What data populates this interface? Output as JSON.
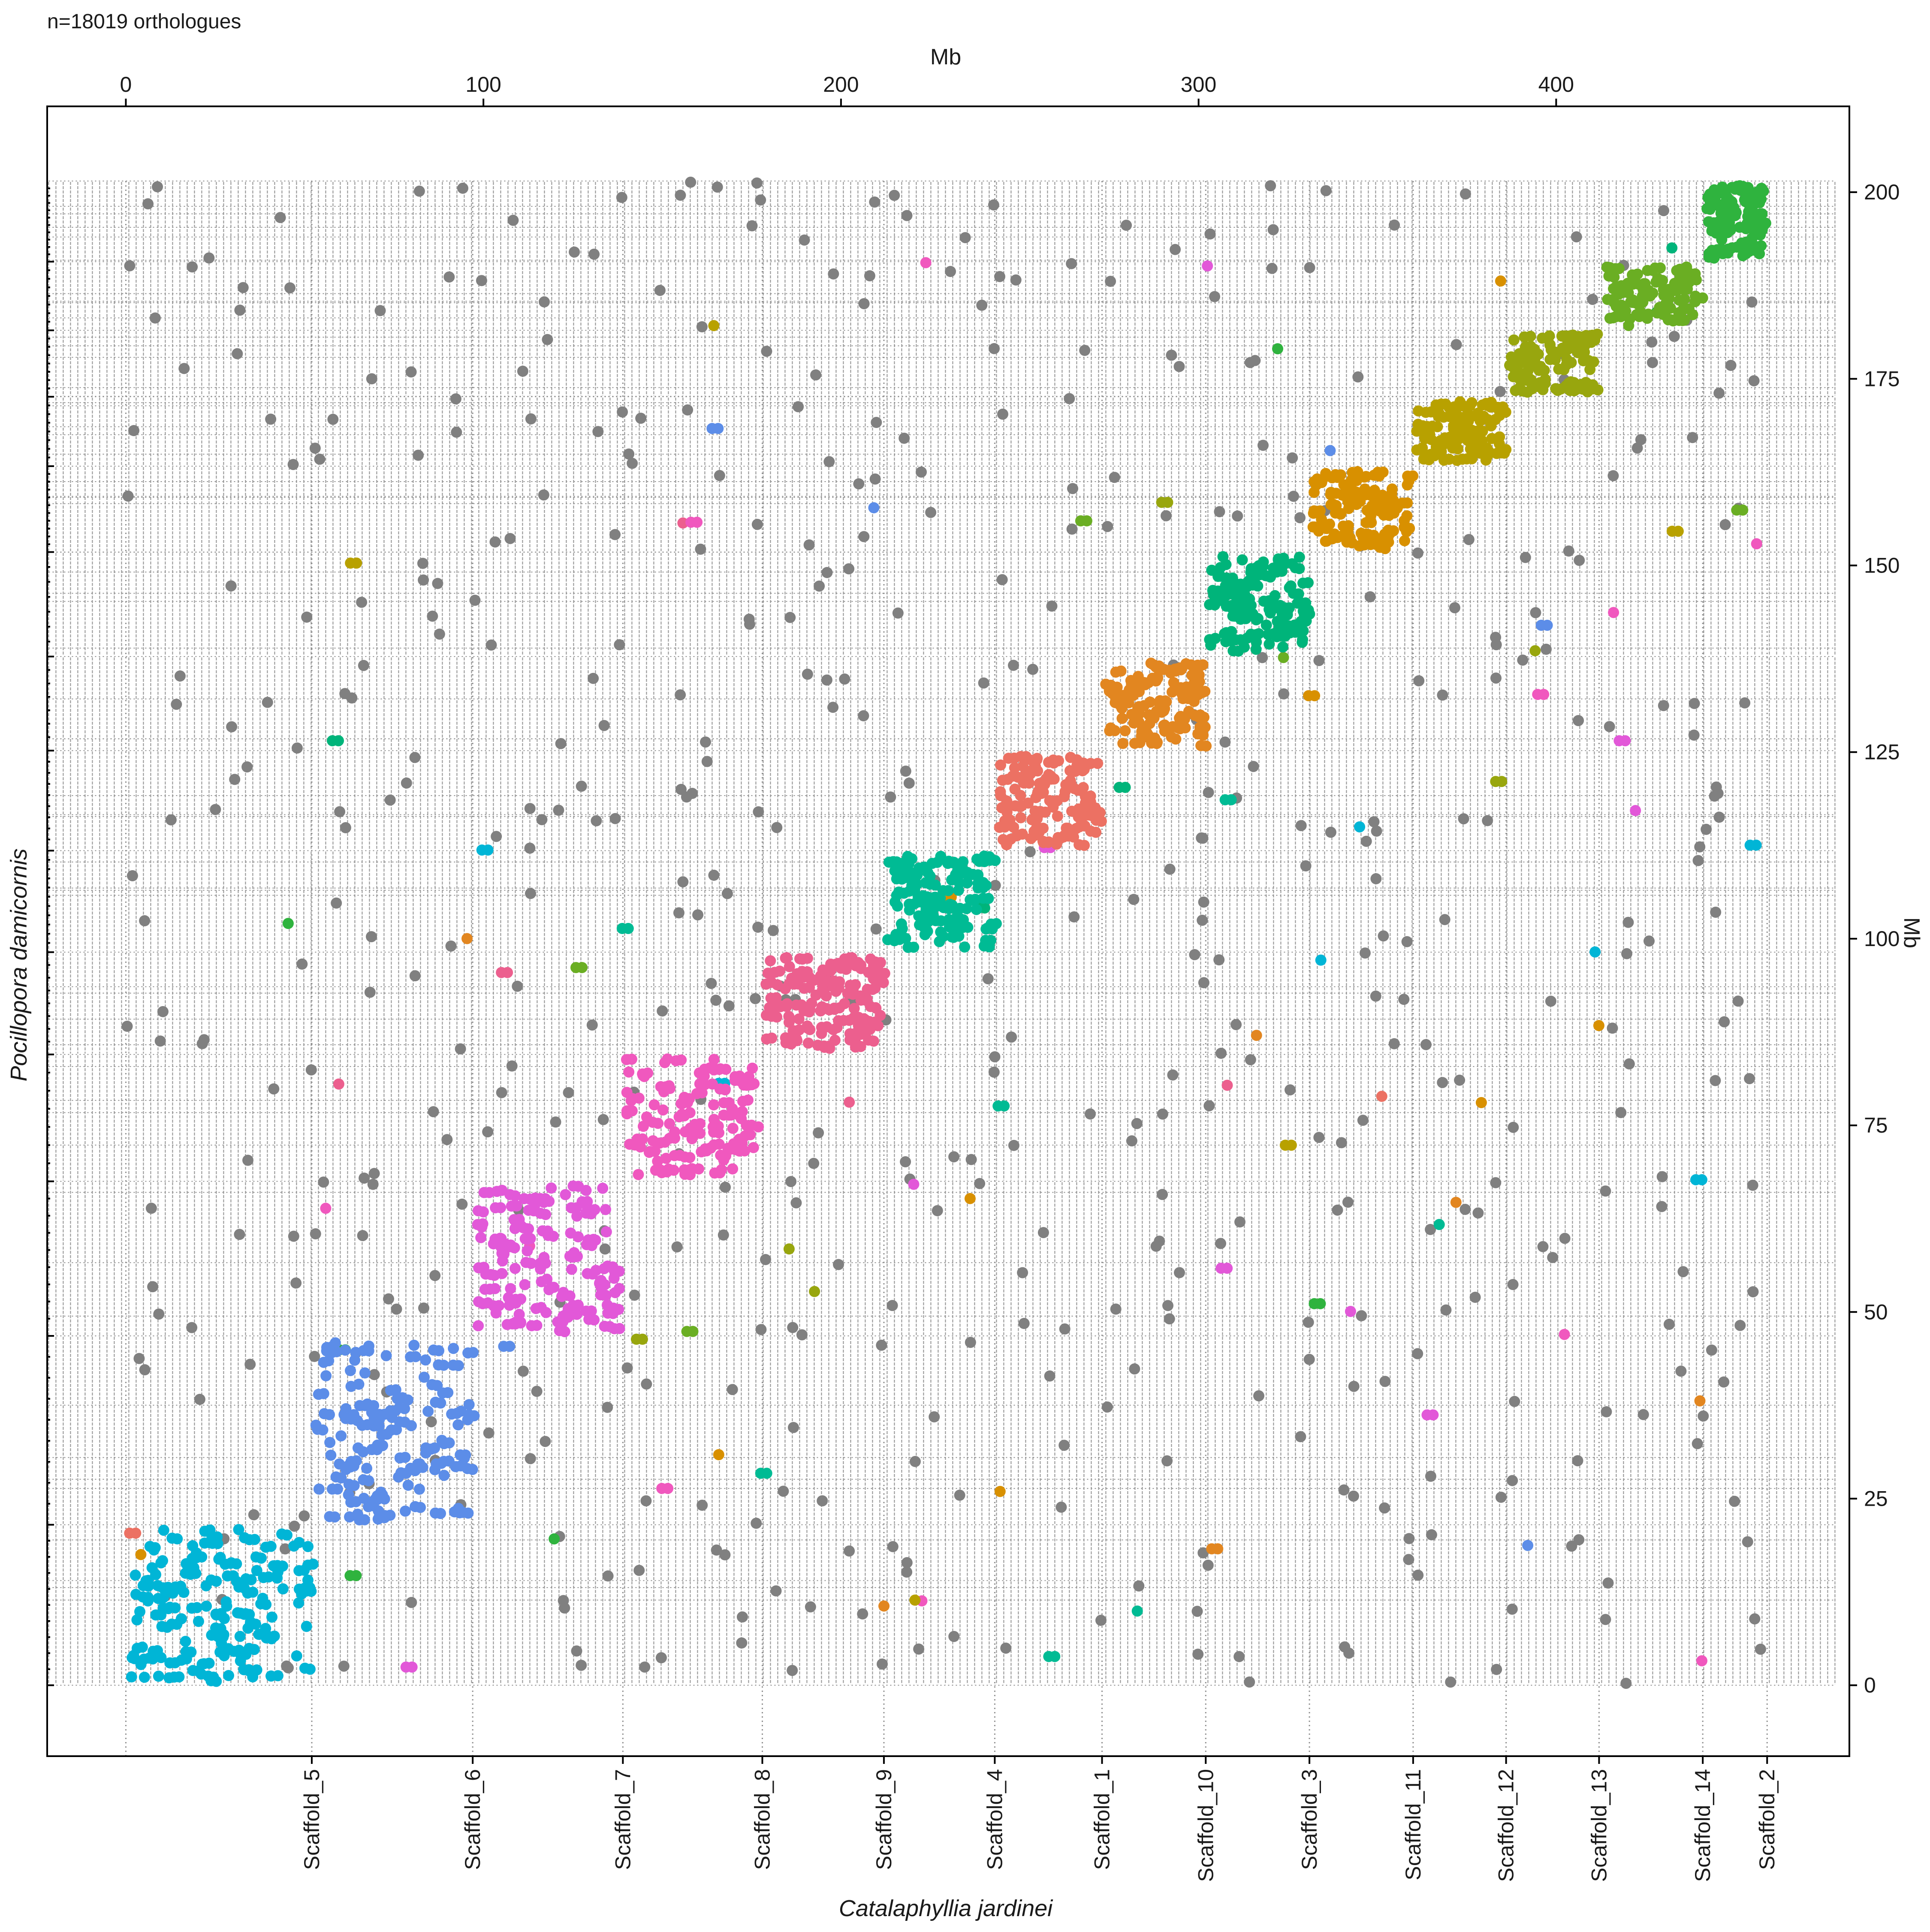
{
  "annotation": "n=18019 orthologues",
  "chart_data": {
    "type": "scatter",
    "top_axis_label": "Mb",
    "right_axis_label": "Mb",
    "xlabel": "Catalaphyllia jardinei",
    "ylabel": "Pocillopora damicornis",
    "x_mb_ticks": [
      0,
      100,
      200,
      300,
      400
    ],
    "y_mb_ticks": [
      0,
      25,
      50,
      75,
      100,
      125,
      150,
      175,
      200
    ],
    "xlim": [
      -22,
      482
    ],
    "ylim": [
      -9.5,
      211.5
    ],
    "x_scaffold_boundaries": [
      0,
      52,
      97,
      139,
      178,
      212,
      243,
      273,
      302,
      331,
      360,
      386,
      412,
      441,
      459
    ],
    "x_scaffold_labels": [
      "Scaffold_5",
      "Scaffold_6",
      "Scaffold_7",
      "Scaffold_8",
      "Scaffold_9",
      "Scaffold_4",
      "Scaffold_1",
      "Scaffold_10",
      "Scaffold_3",
      "Scaffold_11",
      "Scaffold_12",
      "Scaffold_13",
      "Scaffold_14",
      "Scaffold_2"
    ],
    "y_scaffold_boundaries": [
      0,
      21.5,
      46.8,
      67.5,
      84.5,
      98.2,
      111.8,
      125.2,
      137.8,
      151.8,
      163.3,
      172.6,
      181.5,
      190.7,
      201.5
    ],
    "blocks": [
      {
        "color": "#00B5D6",
        "x": [
          0,
          52
        ],
        "y": [
          0,
          21.5
        ],
        "count": 150,
        "density": 1.0
      },
      {
        "color": "#5C8DE8",
        "x": [
          52,
          97
        ],
        "y": [
          21.5,
          46.8
        ],
        "count": 130,
        "density": 1.0
      },
      {
        "color": "#E258D8",
        "x": [
          97,
          139
        ],
        "y": [
          46.8,
          67.5
        ],
        "count": 125,
        "density": 1.0
      },
      {
        "color": "#F058BE",
        "x": [
          139,
          178
        ],
        "y": [
          67.5,
          84.5
        ],
        "count": 110,
        "density": 1.0
      },
      {
        "color": "#EC5F8E",
        "x": [
          178,
          212
        ],
        "y": [
          84.5,
          98.2
        ],
        "count": 120,
        "density": 1.0
      },
      {
        "color": "#00BB94",
        "x": [
          212,
          243
        ],
        "y": [
          98.2,
          111.8
        ],
        "count": 115,
        "density": 1.0
      },
      {
        "color": "#EC7163",
        "x": [
          243,
          273
        ],
        "y": [
          111.8,
          125.2
        ],
        "count": 105,
        "density": 1.0
      },
      {
        "color": "#E28620",
        "x": [
          273,
          302
        ],
        "y": [
          125.2,
          137.8
        ],
        "count": 100,
        "density": 1.0
      },
      {
        "color": "#00B47A",
        "x": [
          302,
          331
        ],
        "y": [
          137.8,
          151.8
        ],
        "count": 110,
        "density": 1.0
      },
      {
        "color": "#D89000",
        "x": [
          331,
          360
        ],
        "y": [
          151.8,
          163.3
        ],
        "count": 95,
        "density": 1.0
      },
      {
        "color": "#B8A100",
        "x": [
          360,
          386
        ],
        "y": [
          163.3,
          172.6
        ],
        "count": 90,
        "density": 1.0
      },
      {
        "color": "#98A60E",
        "x": [
          386,
          412
        ],
        "y": [
          172.6,
          181.5
        ],
        "count": 90,
        "density": 1.0
      },
      {
        "color": "#6AAE23",
        "x": [
          412,
          441
        ],
        "y": [
          181.5,
          190.7
        ],
        "count": 85,
        "density": 1.0
      },
      {
        "color": "#2FB33E",
        "x": [
          441,
          459
        ],
        "y": [
          190.7,
          201.5
        ],
        "count": 90,
        "density": 1.0
      }
    ],
    "background_points": {
      "color": "#808080",
      "count": 560
    },
    "stray_points": {
      "count": 90
    },
    "grid": {
      "major": "dotted",
      "scaffold_lines": "dotted",
      "dense_tick_lines": true
    }
  }
}
